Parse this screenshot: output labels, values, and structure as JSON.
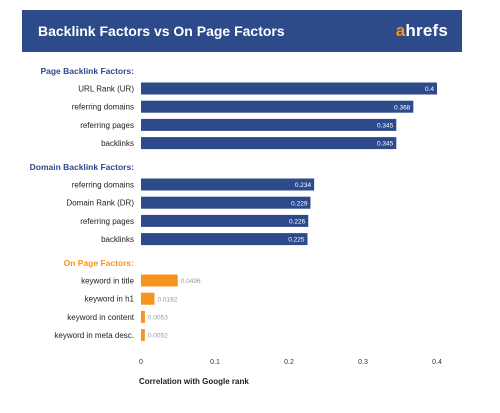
{
  "brand": {
    "accent": "a",
    "rest": "hrefs",
    "accent_color": "#f7941d"
  },
  "chart_data": {
    "type": "bar",
    "orientation": "horizontal",
    "title": "Backlink Factors vs On Page Factors",
    "xlabel": "Correlation with Google rank",
    "xlim": [
      0,
      0.4
    ],
    "xticks": [
      "0",
      "0.1",
      "0.2",
      "0.3",
      "0.4"
    ],
    "grid": false,
    "groups": [
      {
        "name": "Page Backlink Factors:",
        "color": "#2d4a8b",
        "label_color": "#2d4a8b",
        "categories": [
          "URL Rank (UR)",
          "referring domains",
          "referring pages",
          "backlinks"
        ],
        "values": [
          0.4,
          0.368,
          0.345,
          0.345
        ],
        "value_labels": [
          "0.4",
          "0.368",
          "0.345",
          "0.345"
        ]
      },
      {
        "name": "Domain Backlink Factors:",
        "color": "#2d4a8b",
        "label_color": "#2d4a8b",
        "categories": [
          "referring domains",
          "Domain Rank (DR)",
          "referring pages",
          "backlinks"
        ],
        "values": [
          0.234,
          0.229,
          0.226,
          0.225
        ],
        "value_labels": [
          "0.234",
          "0.229",
          "0.226",
          "0.225"
        ]
      },
      {
        "name": "On Page Factors:",
        "color": "#f7941d",
        "label_color": "#f7941d",
        "categories": [
          "keyword in title",
          "keyword in h1",
          "keyword in content",
          "keyword in meta desc."
        ],
        "values": [
          0.0496,
          0.0182,
          0.0053,
          0.0052
        ],
        "value_labels": [
          "0.0496",
          "0.0182",
          "0.0053",
          "0.0052"
        ]
      }
    ]
  }
}
